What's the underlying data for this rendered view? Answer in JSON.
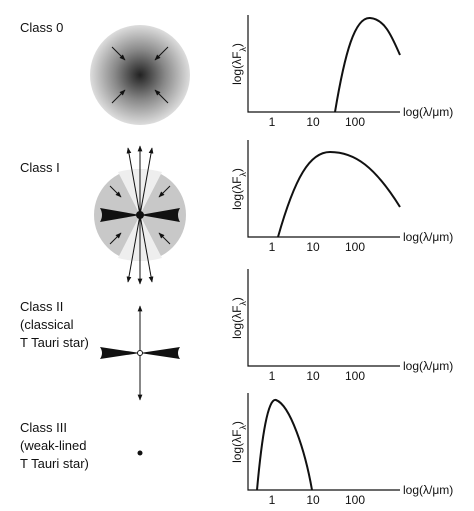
{
  "rows": [
    {
      "label": [
        "Class 0"
      ],
      "plot": {
        "y_label": {
          "text": "log(λF",
          "sub": "λ",
          "close": ")"
        },
        "x_label": "log(λ/μm)",
        "ticks": [
          "1",
          "10",
          "100"
        ]
      }
    },
    {
      "label": [
        "Class I"
      ],
      "plot": {
        "y_label": {
          "text": "log(λF",
          "sub": "λ",
          "close": ")"
        },
        "x_label": "log(λ/μm)",
        "ticks": [
          "1",
          "10",
          "100"
        ]
      }
    },
    {
      "label": [
        "Class II",
        "(classical",
        "T Tauri star)"
      ],
      "plot": {
        "y_label": {
          "text": "log(λF",
          "sub": "λ",
          "close": ")"
        },
        "x_label": "log(λ/μm)",
        "ticks": [
          "1",
          "10",
          "100"
        ]
      }
    },
    {
      "label": [
        "Class III",
        "(weak-lined",
        "T Tauri star)"
      ],
      "plot": {
        "y_label": {
          "text": "log(λF",
          "sub": "λ",
          "close": ")"
        },
        "x_label": "log(λ/μm)",
        "ticks": [
          "1",
          "10",
          "100"
        ]
      }
    }
  ]
}
